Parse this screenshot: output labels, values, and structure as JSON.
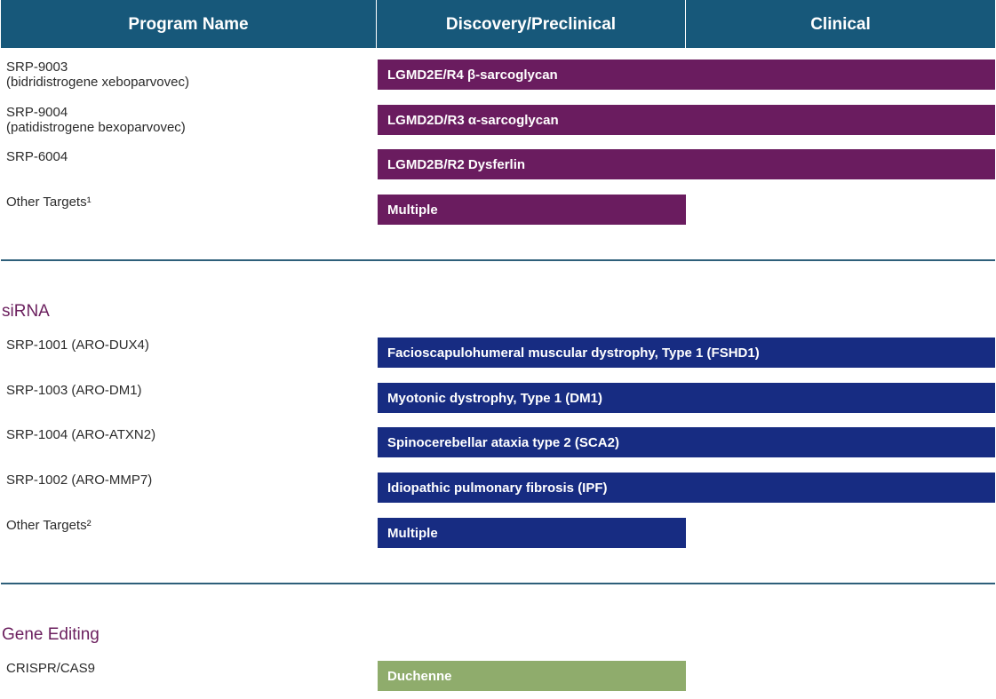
{
  "header": {
    "program_name": "Program Name",
    "discovery": "Discovery/Preclinical",
    "clinical": "Clinical"
  },
  "colors": {
    "header_bg": "#17587a",
    "gene_therapy_bar": "#6a1c5f",
    "sirna_bar": "#172c82",
    "gene_editing_bar": "#8fac6c",
    "section_title": "#6b1f5e"
  },
  "chart_data": {
    "type": "table",
    "stages": [
      "Discovery/Preclinical",
      "Clinical"
    ],
    "sections": [
      {
        "title": "",
        "rows": [
          {
            "program": "SRP-9003",
            "subname": "(bidridistrogene xeboparvovec)",
            "indication": "LGMD2E/R4 β-sarcoglycan",
            "stage_progress": 2
          },
          {
            "program": "SRP-9004",
            "subname": "(patidistrogene bexoparvovec)",
            "indication": "LGMD2D/R3 α-sarcoglycan",
            "stage_progress": 2
          },
          {
            "program": "SRP-6004",
            "subname": "",
            "indication": "LGMD2B/R2 Dysferlin",
            "stage_progress": 2
          },
          {
            "program": "Other Targets¹",
            "subname": "",
            "indication": "Multiple",
            "stage_progress": 1
          }
        ]
      },
      {
        "title": "siRNA",
        "rows": [
          {
            "program": "SRP-1001 (ARO-DUX4)",
            "subname": "",
            "indication": "Facioscapulohumeral muscular dystrophy, Type 1 (FSHD1)",
            "stage_progress": 2
          },
          {
            "program": "SRP-1003 (ARO-DM1)",
            "subname": "",
            "indication": "Myotonic dystrophy, Type 1 (DM1)",
            "stage_progress": 2
          },
          {
            "program": "SRP-1004 (ARO-ATXN2)",
            "subname": "",
            "indication": "Spinocerebellar ataxia type 2 (SCA2)",
            "stage_progress": 2
          },
          {
            "program": "SRP-1002 (ARO-MMP7)",
            "subname": "",
            "indication": "Idiopathic pulmonary fibrosis (IPF)",
            "stage_progress": 2
          },
          {
            "program": "Other Targets²",
            "subname": "",
            "indication": "Multiple",
            "stage_progress": 1
          }
        ]
      },
      {
        "title": "Gene Editing",
        "rows": [
          {
            "program": "CRISPR/CAS9",
            "subname": "",
            "indication": "Duchenne",
            "stage_progress": 1
          }
        ]
      }
    ]
  }
}
